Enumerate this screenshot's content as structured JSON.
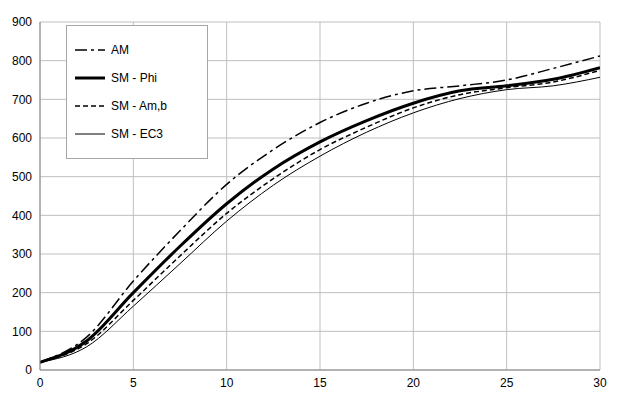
{
  "chart_data": {
    "type": "line",
    "x": [
      0,
      2.5,
      5,
      7.5,
      10,
      12.5,
      15,
      17.5,
      20,
      22.5,
      25,
      27.5,
      30
    ],
    "series": [
      {
        "name": "AM",
        "color": "#000000",
        "line_style": "dashdot",
        "values": [
          20,
          85,
          230,
          360,
          480,
          570,
          640,
          690,
          722,
          735,
          750,
          780,
          812
        ]
      },
      {
        "name": "SM - Phi",
        "color": "#000000",
        "line_style": "thick",
        "values": [
          20,
          75,
          200,
          320,
          430,
          520,
          590,
          645,
          690,
          722,
          735,
          752,
          782
        ]
      },
      {
        "name": "SM - Am,b",
        "color": "#000000",
        "line_style": "dashed",
        "values": [
          20,
          68,
          180,
          295,
          405,
          495,
          570,
          628,
          678,
          712,
          730,
          745,
          775
        ]
      },
      {
        "name": "SM - EC3",
        "color": "#000000",
        "line_style": "solid",
        "values": [
          20,
          60,
          165,
          275,
          385,
          478,
          553,
          615,
          665,
          702,
          725,
          735,
          757
        ]
      }
    ],
    "xlim": [
      0,
      30
    ],
    "ylim": [
      0,
      900
    ],
    "xticks": [
      0,
      5,
      10,
      15,
      20,
      25,
      30
    ],
    "yticks": [
      0,
      100,
      200,
      300,
      400,
      500,
      600,
      700,
      800,
      900
    ],
    "grid": true,
    "legend": "upper left"
  }
}
